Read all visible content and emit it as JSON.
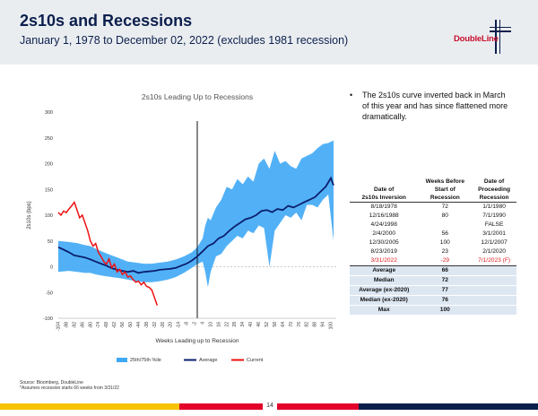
{
  "header": {
    "title": "2s10s and Recessions",
    "subtitle": "January 1, 1978 to December 02, 2022 (excludes 1981 recession)",
    "logo_text": "DoubleLine"
  },
  "bullet": "The 2s10s curve inverted back in March of this year and has since flattened more dramatically.",
  "table": {
    "headers": [
      "Date of 2s10s Inversion",
      "Weeks Before Start of Recession",
      "Date of Proceeding Recession"
    ],
    "header_rows": [
      [
        "",
        "Weeks Before",
        "Date of"
      ],
      [
        "Date of",
        "Start of",
        "Proceeding"
      ],
      [
        "2s10s Inversion",
        "Recession",
        "Recession"
      ]
    ],
    "rows": [
      [
        "8/18/1978",
        "72",
        "1/1/1980"
      ],
      [
        "12/16/1988",
        "80",
        "7/1/1990"
      ],
      [
        "4/24/1998",
        "",
        "FALSE"
      ],
      [
        "2/4/2000",
        "56",
        "3/1/2001"
      ],
      [
        "12/30/2005",
        "100",
        "12/1/2007"
      ],
      [
        "8/23/2019",
        "23",
        "2/1/2020"
      ],
      [
        "3/31/2022",
        "-29",
        "7/1/2023 (F)"
      ]
    ],
    "stats": [
      [
        "Average",
        "66"
      ],
      [
        "Median",
        "72"
      ],
      [
        "Average (ex-2020)",
        "77"
      ],
      [
        "Median (ex-2020)",
        "76"
      ],
      [
        "Max",
        "100"
      ]
    ]
  },
  "source": "Source: Bloomberg, DoubleLine",
  "footnote": "*Assumes recession starts 66 weeks from 3/31/22",
  "page_number": "14",
  "colors": {
    "band": "#3fa9f5",
    "average": "#0b1f6e",
    "current": "#ee1111",
    "navy": "#0b1f4d",
    "brand_red": "#c8102e",
    "footer_yellow": "#f6c300",
    "footer_red": "#e3002b",
    "footer_navy": "#0b1f4d"
  },
  "chart_data": {
    "type": "line",
    "title": "2s10s Leading Up to Recessions",
    "xlabel": "Weeks Leading up to Recession",
    "ylabel": "2s10s (bps)",
    "ylim": [
      -100,
      300
    ],
    "yticks": [
      -100,
      -50,
      0,
      50,
      100,
      150,
      200,
      250,
      300
    ],
    "xlim": [
      -104,
      104
    ],
    "xticks": [
      -104,
      -98,
      -92,
      -86,
      -80,
      -74,
      -68,
      -62,
      -56,
      -50,
      -44,
      -38,
      -32,
      -26,
      -20,
      -14,
      -8,
      -2,
      4,
      10,
      16,
      22,
      28,
      34,
      40,
      46,
      52,
      58,
      64,
      70,
      76,
      82,
      88,
      94,
      100
    ],
    "vline_x": 0,
    "legend": [
      "25th/75th %ile",
      "Average",
      "Current"
    ],
    "legend_position": "bottom",
    "series": [
      {
        "name": "25th/75th %ile",
        "x": [
          -104,
          -96,
          -90,
          -84,
          -80,
          -76,
          -70,
          -64,
          -58,
          -52,
          -46,
          -40,
          -34,
          -28,
          -22,
          -16,
          -10,
          -4,
          0,
          4,
          6,
          8,
          10,
          14,
          18,
          22,
          26,
          30,
          34,
          38,
          42,
          46,
          50,
          54,
          58,
          62,
          66,
          70,
          74,
          78,
          82,
          86,
          90,
          94,
          98,
          102
        ],
        "upper": [
          50,
          48,
          46,
          42,
          40,
          35,
          28,
          22,
          16,
          10,
          8,
          6,
          6,
          8,
          10,
          14,
          20,
          28,
          38,
          55,
          80,
          95,
          90,
          115,
          130,
          155,
          150,
          170,
          160,
          175,
          165,
          200,
          210,
          190,
          225,
          200,
          205,
          195,
          190,
          210,
          215,
          220,
          230,
          238,
          240,
          245
        ],
        "lower": [
          -10,
          -8,
          -10,
          -12,
          -12,
          -15,
          -18,
          -20,
          -22,
          -25,
          -28,
          -30,
          -30,
          -28,
          -25,
          -20,
          -12,
          -2,
          5,
          10,
          -10,
          -40,
          -10,
          20,
          25,
          40,
          50,
          60,
          55,
          70,
          65,
          80,
          75,
          0,
          70,
          85,
          100,
          95,
          105,
          90,
          120,
          120,
          115,
          130,
          140,
          50
        ]
      },
      {
        "name": "Average",
        "x": [
          -104,
          -100,
          -96,
          -92,
          -88,
          -84,
          -80,
          -76,
          -72,
          -68,
          -64,
          -60,
          -56,
          -52,
          -48,
          -44,
          -40,
          -36,
          -32,
          -28,
          -24,
          -20,
          -16,
          -12,
          -8,
          -4,
          0,
          4,
          8,
          12,
          16,
          20,
          24,
          28,
          32,
          36,
          40,
          44,
          48,
          52,
          56,
          60,
          64,
          68,
          72,
          76,
          80,
          84,
          88,
          92,
          96,
          100,
          102
        ],
        "values": [
          38,
          33,
          28,
          22,
          20,
          18,
          14,
          10,
          6,
          2,
          -3,
          -6,
          -8,
          -10,
          -8,
          -12,
          -10,
          -9,
          -8,
          -6,
          -5,
          -4,
          -2,
          2,
          6,
          12,
          20,
          30,
          40,
          45,
          55,
          60,
          70,
          78,
          85,
          92,
          95,
          100,
          108,
          110,
          106,
          112,
          110,
          118,
          115,
          120,
          125,
          130,
          135,
          145,
          155,
          172,
          158
        ]
      },
      {
        "name": "Current",
        "x": [
          -104,
          -102,
          -100,
          -98,
          -96,
          -94,
          -92,
          -90,
          -88,
          -86,
          -84,
          -82,
          -80,
          -78,
          -76,
          -74,
          -72,
          -70,
          -68,
          -66,
          -64,
          -62,
          -60,
          -58,
          -56,
          -54,
          -52,
          -50,
          -48,
          -46,
          -44,
          -42,
          -40,
          -38,
          -36,
          -34,
          -32,
          -30
        ],
        "values": [
          105,
          100,
          108,
          105,
          112,
          118,
          125,
          110,
          95,
          100,
          85,
          70,
          50,
          40,
          45,
          28,
          20,
          10,
          5,
          15,
          -2,
          5,
          -10,
          -5,
          -15,
          -10,
          -20,
          -18,
          -25,
          -30,
          -28,
          -35,
          -30,
          -38,
          -40,
          -45,
          -60,
          -75
        ]
      }
    ]
  }
}
